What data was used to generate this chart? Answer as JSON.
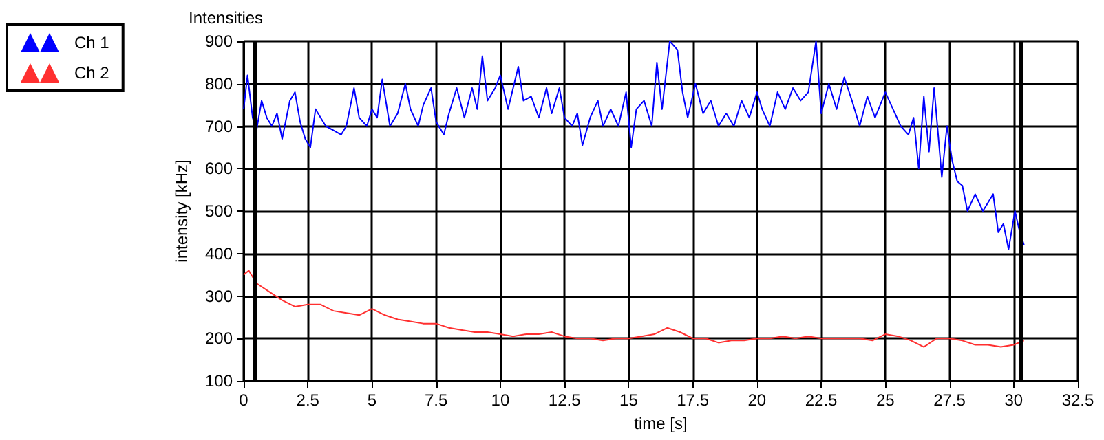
{
  "chart_data": {
    "type": "line",
    "title": "Intensities",
    "xlabel": "time [s]",
    "ylabel": "intensity [kHz]",
    "xlim": [
      0,
      32.5
    ],
    "xticks": [
      0,
      2.5,
      5,
      7.5,
      10,
      12.5,
      15,
      17.5,
      20,
      22.5,
      25,
      27.5,
      30,
      32.5
    ],
    "ylim": [
      100,
      900
    ],
    "yticks": [
      100,
      200,
      300,
      400,
      500,
      600,
      700,
      800,
      900
    ],
    "grid": true,
    "legend": "top left",
    "marker": "none",
    "line_style": "solid",
    "ref_lines": [
      {
        "axis": "x",
        "value": 0.45,
        "color": "#000000"
      },
      {
        "axis": "x",
        "value": 30.25,
        "color": "#000000"
      }
    ],
    "series": [
      {
        "name": "Ch 1",
        "color": "#0000ff",
        "x": [
          0,
          0.15,
          0.35,
          0.5,
          0.7,
          0.9,
          1.1,
          1.3,
          1.5,
          1.8,
          2.0,
          2.2,
          2.4,
          2.6,
          2.8,
          3.0,
          3.2,
          3.5,
          3.8,
          4.0,
          4.3,
          4.5,
          4.8,
          5.0,
          5.2,
          5.4,
          5.7,
          6.0,
          6.3,
          6.5,
          6.8,
          7.0,
          7.3,
          7.5,
          7.8,
          8.0,
          8.3,
          8.6,
          8.9,
          9.1,
          9.3,
          9.5,
          9.8,
          10.0,
          10.3,
          10.5,
          10.7,
          10.9,
          11.2,
          11.5,
          11.8,
          12.0,
          12.3,
          12.5,
          12.8,
          13.0,
          13.2,
          13.5,
          13.8,
          14.0,
          14.3,
          14.6,
          14.9,
          15.1,
          15.3,
          15.6,
          15.9,
          16.1,
          16.3,
          16.6,
          16.9,
          17.1,
          17.3,
          17.6,
          17.9,
          18.2,
          18.5,
          18.8,
          19.1,
          19.4,
          19.7,
          20.0,
          20.2,
          20.5,
          20.8,
          21.1,
          21.4,
          21.7,
          22.0,
          22.3,
          22.5,
          22.8,
          23.1,
          23.4,
          23.7,
          24.0,
          24.3,
          24.6,
          25.0,
          25.3,
          25.6,
          25.9,
          26.1,
          26.3,
          26.5,
          26.7,
          26.9,
          27.2,
          27.4,
          27.6,
          27.8,
          28.0,
          28.2,
          28.5,
          28.8,
          29.0,
          29.2,
          29.4,
          29.6,
          29.8,
          30.05,
          30.2,
          30.4
        ],
        "values": [
          740,
          820,
          720,
          690,
          760,
          720,
          700,
          730,
          670,
          760,
          780,
          710,
          670,
          650,
          740,
          720,
          700,
          690,
          680,
          700,
          790,
          720,
          700,
          740,
          720,
          810,
          700,
          730,
          800,
          740,
          700,
          750,
          790,
          710,
          680,
          730,
          790,
          720,
          790,
          740,
          865,
          760,
          790,
          820,
          740,
          790,
          840,
          760,
          770,
          720,
          790,
          730,
          790,
          720,
          700,
          730,
          655,
          720,
          760,
          700,
          740,
          700,
          780,
          650,
          740,
          760,
          700,
          850,
          740,
          900,
          880,
          780,
          720,
          800,
          730,
          760,
          700,
          730,
          700,
          760,
          720,
          780,
          740,
          700,
          780,
          740,
          790,
          760,
          780,
          900,
          730,
          800,
          740,
          815,
          760,
          700,
          770,
          720,
          780,
          740,
          700,
          680,
          720,
          600,
          770,
          640,
          790,
          580,
          700,
          620,
          570,
          560,
          500,
          540,
          500,
          520,
          540,
          450,
          470,
          410,
          500,
          460,
          420
        ]
      },
      {
        "name": "Ch 2",
        "color": "#ff3030",
        "x": [
          0,
          0.2,
          0.5,
          1,
          1.5,
          2,
          2.5,
          3,
          3.5,
          4,
          4.5,
          5,
          5.5,
          6,
          6.5,
          7,
          7.5,
          8,
          8.5,
          9,
          9.5,
          10,
          10.5,
          11,
          11.5,
          12,
          12.5,
          13,
          13.5,
          14,
          14.5,
          15,
          15.5,
          16,
          16.5,
          17,
          17.5,
          18,
          18.5,
          19,
          19.5,
          20,
          20.5,
          21,
          21.5,
          22,
          22.5,
          23,
          23.5,
          24,
          24.5,
          25,
          25.5,
          26,
          26.5,
          27,
          27.5,
          28,
          28.5,
          29,
          29.5,
          30,
          30.4
        ],
        "values": [
          350,
          360,
          330,
          310,
          290,
          275,
          280,
          280,
          265,
          260,
          255,
          270,
          255,
          245,
          240,
          235,
          235,
          225,
          220,
          215,
          215,
          210,
          205,
          210,
          210,
          215,
          205,
          200,
          200,
          195,
          200,
          200,
          205,
          210,
          225,
          215,
          200,
          200,
          190,
          195,
          195,
          200,
          200,
          205,
          200,
          205,
          200,
          200,
          200,
          200,
          195,
          210,
          205,
          195,
          180,
          200,
          200,
          195,
          185,
          185,
          180,
          185,
          195
        ]
      }
    ]
  }
}
